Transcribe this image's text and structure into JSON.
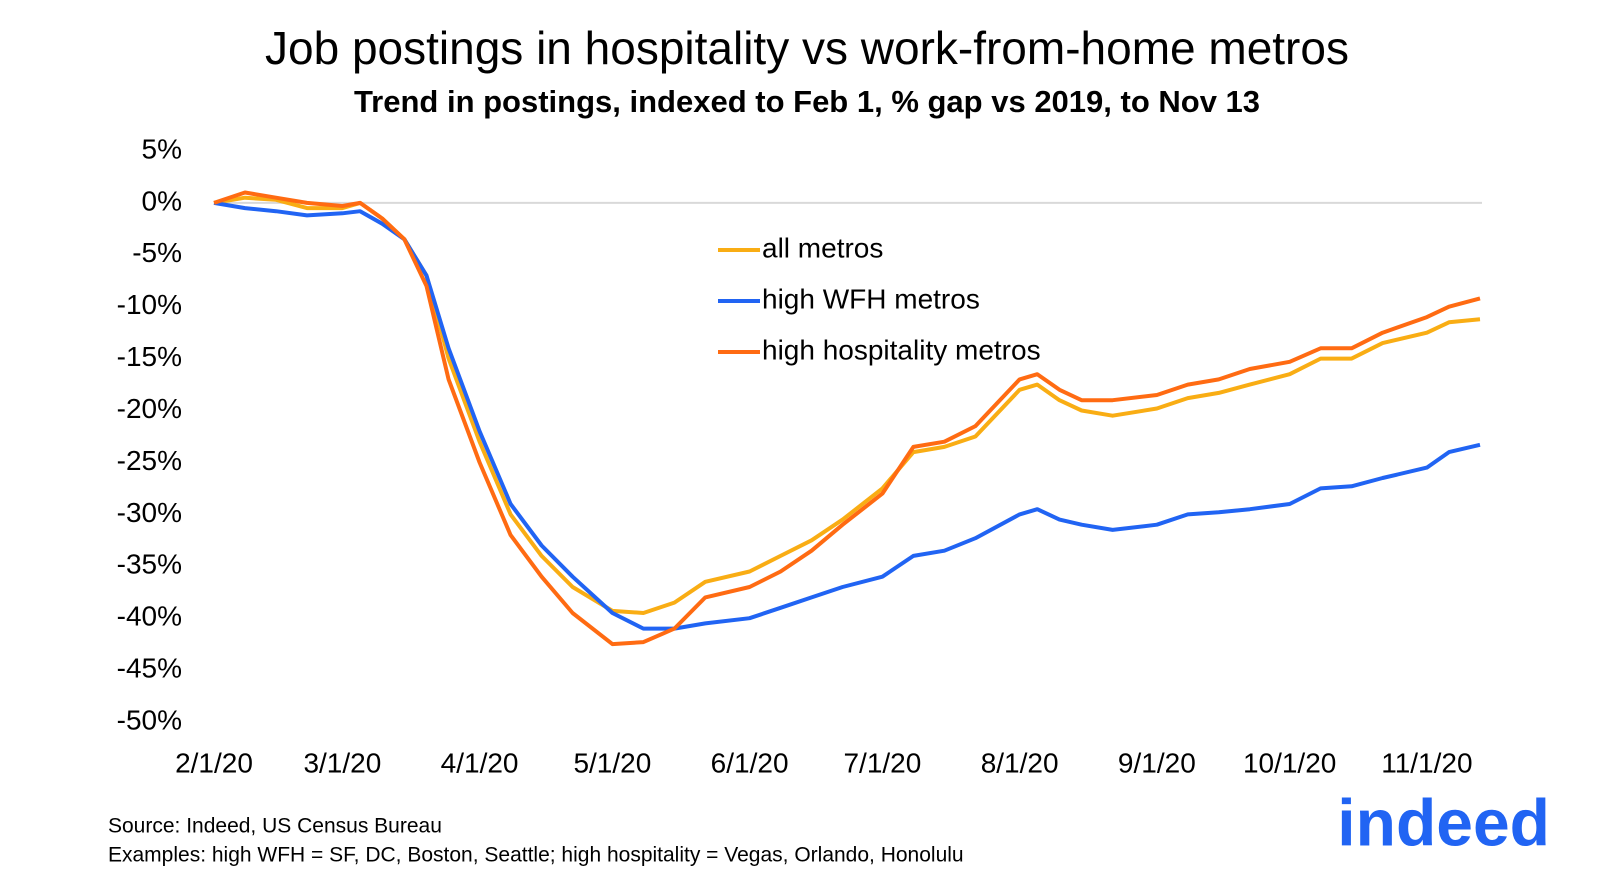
{
  "chart_data": {
    "type": "line",
    "title": "Job postings in hospitality vs work-from-home metros",
    "subtitle": "Trend in postings, indexed to Feb 1, % gap vs 2019, to Nov 13",
    "x": [
      "2020-02-01",
      "2020-02-08",
      "2020-02-15",
      "2020-02-22",
      "2020-03-01",
      "2020-03-05",
      "2020-03-10",
      "2020-03-15",
      "2020-03-20",
      "2020-03-25",
      "2020-04-01",
      "2020-04-08",
      "2020-04-15",
      "2020-04-22",
      "2020-05-01",
      "2020-05-08",
      "2020-05-15",
      "2020-05-22",
      "2020-06-01",
      "2020-06-08",
      "2020-06-15",
      "2020-06-22",
      "2020-07-01",
      "2020-07-08",
      "2020-07-15",
      "2020-07-22",
      "2020-08-01",
      "2020-08-05",
      "2020-08-10",
      "2020-08-15",
      "2020-08-22",
      "2020-09-01",
      "2020-09-08",
      "2020-09-15",
      "2020-09-22",
      "2020-10-01",
      "2020-10-08",
      "2020-10-15",
      "2020-10-22",
      "2020-11-01",
      "2020-11-06",
      "2020-11-13"
    ],
    "series": [
      {
        "name": "all metros",
        "color": "#f9ad14",
        "values": [
          0,
          0.5,
          0.3,
          -0.5,
          -0.5,
          0,
          -1.5,
          -3.5,
          -7,
          -15,
          -23,
          -30,
          -34,
          -37,
          -39.3,
          -39.5,
          -38.5,
          -36.5,
          -35.5,
          -34,
          -32.5,
          -30.5,
          -27.5,
          -24,
          -23.5,
          -22.5,
          -18,
          -17.5,
          -19,
          -20,
          -20.5,
          -19.8,
          -18.8,
          -18.3,
          -17.5,
          -16.5,
          -15,
          -15,
          -13.5,
          -12.5,
          -11.5,
          -11.2
        ]
      },
      {
        "name": "high WFH metros",
        "color": "#2164f3",
        "values": [
          0,
          -0.5,
          -0.8,
          -1.2,
          -1,
          -0.8,
          -2,
          -3.5,
          -7,
          -14,
          -22,
          -29,
          -33,
          -36,
          -39.5,
          -41,
          -41,
          -40.5,
          -40,
          -39,
          -38,
          -37,
          -36,
          -34,
          -33.5,
          -32.3,
          -30,
          -29.5,
          -30.5,
          -31,
          -31.5,
          -31,
          -30,
          -29.8,
          -29.5,
          -29,
          -27.5,
          -27.3,
          -26.5,
          -25.5,
          -24,
          -23.3
        ]
      },
      {
        "name": "high hospitality metros",
        "color": "#ff6b12",
        "values": [
          0,
          1,
          0.5,
          0,
          -0.3,
          0,
          -1.5,
          -3.5,
          -8,
          -17,
          -25,
          -32,
          -36,
          -39.5,
          -42.5,
          -42.3,
          -41,
          -38,
          -37,
          -35.5,
          -33.5,
          -31,
          -28,
          -23.5,
          -23,
          -21.5,
          -17,
          -16.5,
          -18,
          -19,
          -19,
          -18.5,
          -17.5,
          -17,
          -16,
          -15.3,
          -14,
          -14,
          -12.5,
          -11,
          -10,
          -9.2
        ]
      }
    ],
    "xlim": [
      "2020-02-01",
      "2020-11-13"
    ],
    "xticks": [
      {
        "value": "2020-02-01",
        "label": "2/1/20"
      },
      {
        "value": "2020-03-01",
        "label": "3/1/20"
      },
      {
        "value": "2020-04-01",
        "label": "4/1/20"
      },
      {
        "value": "2020-05-01",
        "label": "5/1/20"
      },
      {
        "value": "2020-06-01",
        "label": "6/1/20"
      },
      {
        "value": "2020-07-01",
        "label": "7/1/20"
      },
      {
        "value": "2020-08-01",
        "label": "8/1/20"
      },
      {
        "value": "2020-09-01",
        "label": "9/1/20"
      },
      {
        "value": "2020-10-01",
        "label": "10/1/20"
      },
      {
        "value": "2020-11-01",
        "label": "11/1/20"
      }
    ],
    "ylim": [
      -50,
      5
    ],
    "yticks": [
      {
        "value": 5,
        "label": "5%"
      },
      {
        "value": 0,
        "label": "0%"
      },
      {
        "value": -5,
        "label": "-5%"
      },
      {
        "value": -10,
        "label": "-10%"
      },
      {
        "value": -15,
        "label": "-15%"
      },
      {
        "value": -20,
        "label": "-20%"
      },
      {
        "value": -25,
        "label": "-25%"
      },
      {
        "value": -30,
        "label": "-30%"
      },
      {
        "value": -35,
        "label": "-35%"
      },
      {
        "value": -40,
        "label": "-40%"
      },
      {
        "value": -45,
        "label": "-45%"
      },
      {
        "value": -50,
        "label": "-50%"
      }
    ],
    "zero_line": 0,
    "notes": [
      "Source: Indeed, US Census Bureau",
      "Examples: high WFH = SF, DC, Boston, Seattle; high hospitality = Vegas, Orlando, Honolulu"
    ],
    "logo": "indeed"
  }
}
